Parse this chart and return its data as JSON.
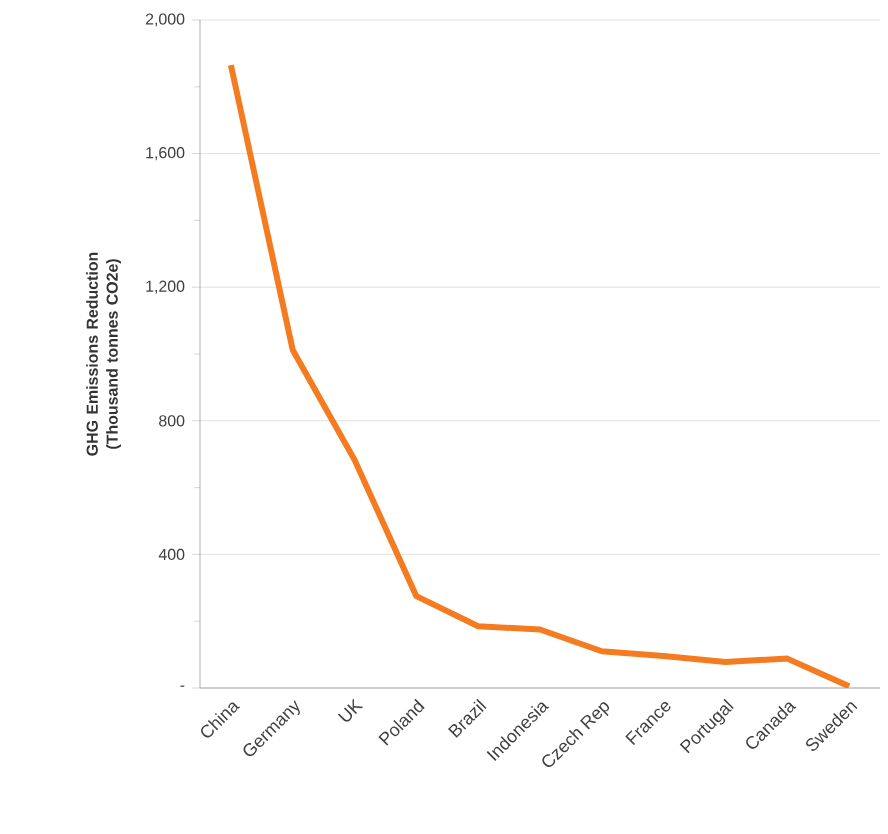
{
  "chart_data": {
    "type": "line",
    "ylabel": "GHG Emissions Reduction (Thousand tonnes CO2e)",
    "categories": [
      "China",
      "Germany",
      "UK",
      "Poland",
      "Brazil",
      "Indonesia",
      "Czech Rep",
      "France",
      "Portugal",
      "Canada",
      "Sweden"
    ],
    "series": [
      {
        "color": "#f47b20",
        "values": [
          1865,
          1012,
          683,
          275,
          185,
          175,
          110,
          96,
          78,
          88,
          5
        ]
      }
    ],
    "ylim": [
      0,
      2000
    ],
    "yticks": [
      {
        "value": 0,
        "label": "-"
      },
      {
        "value": 200,
        "label": null
      },
      {
        "value": 400,
        "label": "400"
      },
      {
        "value": 600,
        "label": null
      },
      {
        "value": 800,
        "label": "800"
      },
      {
        "value": 1000,
        "label": null
      },
      {
        "value": 1200,
        "label": "1,200"
      },
      {
        "value": 1400,
        "label": null
      },
      {
        "value": 1600,
        "label": "1,600"
      },
      {
        "value": 1800,
        "label": null
      },
      {
        "value": 2000,
        "label": "2,000"
      }
    ],
    "grid": "y",
    "marker": "none",
    "line_style": "solid"
  }
}
